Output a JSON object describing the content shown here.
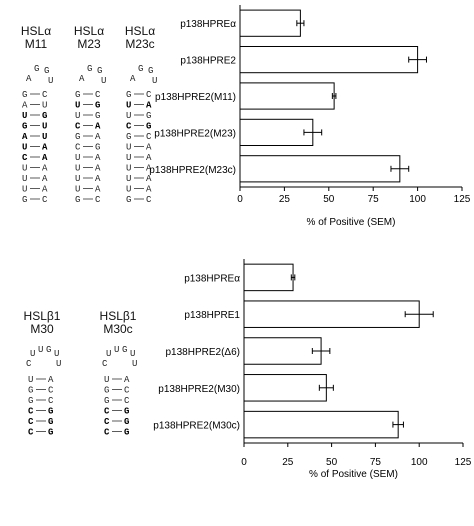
{
  "structures_top": [
    {
      "title_lines": [
        "HSLα",
        "M11"
      ],
      "loop": [
        "A",
        "G",
        "G",
        "U"
      ],
      "stem": [
        [
          "G",
          "C",
          false
        ],
        [
          "A",
          "U",
          false
        ],
        [
          "U",
          "G",
          true
        ],
        [
          "G",
          "U",
          true
        ],
        [
          "A",
          "U",
          true
        ],
        [
          "U",
          "A",
          true
        ],
        [
          "C",
          "A",
          true
        ],
        [
          "U",
          "A",
          false
        ],
        [
          "U",
          "A",
          false
        ],
        [
          "U",
          "A",
          false
        ],
        [
          "G",
          "C",
          false
        ]
      ]
    },
    {
      "title_lines": [
        "HSLα",
        "M23"
      ],
      "loop": [
        "A",
        "G",
        "G",
        "U"
      ],
      "stem": [
        [
          "G",
          "C",
          false
        ],
        [
          "U",
          "G",
          true
        ],
        [
          "U",
          "G",
          false
        ],
        [
          "C",
          "A",
          true
        ],
        [
          "G",
          "A",
          false
        ],
        [
          "C",
          "G",
          false
        ],
        [
          "U",
          "A",
          false
        ],
        [
          "U",
          "A",
          false
        ],
        [
          "U",
          "A",
          false
        ],
        [
          "U",
          "A",
          false
        ],
        [
          "G",
          "C",
          false
        ]
      ]
    },
    {
      "title_lines": [
        "HSLα",
        "M23c"
      ],
      "loop": [
        "A",
        "G",
        "G",
        "U"
      ],
      "stem": [
        [
          "G",
          "C",
          false
        ],
        [
          "U",
          "A",
          true
        ],
        [
          "U",
          "G",
          false
        ],
        [
          "C",
          "G",
          true
        ],
        [
          "G",
          "C",
          false
        ],
        [
          "U",
          "A",
          false
        ],
        [
          "U",
          "A",
          false
        ],
        [
          "U",
          "A",
          false
        ],
        [
          "U",
          "A",
          false
        ],
        [
          "U",
          "A",
          false
        ],
        [
          "G",
          "C",
          false
        ]
      ]
    }
  ],
  "structures_bottom": [
    {
      "title_lines": [
        "HSLβ1",
        "M30"
      ],
      "loop": [
        "U",
        "U",
        "G",
        "U",
        "C",
        "U"
      ],
      "stem": [
        [
          "U",
          "A",
          false
        ],
        [
          "G",
          "C",
          false
        ],
        [
          "G",
          "C",
          false
        ],
        [
          "C",
          "G",
          true
        ],
        [
          "C",
          "G",
          true
        ],
        [
          "C",
          "G",
          true
        ]
      ]
    },
    {
      "title_lines": [
        "HSLβ1",
        "M30c"
      ],
      "loop": [
        "U",
        "U",
        "G",
        "U",
        "C",
        "U"
      ],
      "stem": [
        [
          "U",
          "A",
          false
        ],
        [
          "G",
          "C",
          false
        ],
        [
          "G",
          "C",
          false
        ],
        [
          "C",
          "G",
          true
        ],
        [
          "C",
          "G",
          true
        ],
        [
          "C",
          "G",
          true
        ]
      ]
    }
  ],
  "chart_data": [
    {
      "type": "bar",
      "orientation": "horizontal",
      "categories": [
        "p138HPREα",
        "p138HPRE2",
        "p138HPRE2(M11)",
        "p138HPRE2(M23)",
        "p138HPRE2(M23c)"
      ],
      "values": [
        34,
        100,
        53,
        41,
        90
      ],
      "errors": [
        2,
        5,
        1,
        5,
        5
      ],
      "xlabel": "% of Positive (SEM)",
      "xlim": [
        0,
        125
      ],
      "xticks": [
        "0",
        "25",
        "50",
        "75",
        "100",
        "125"
      ],
      "colors": {
        "bar_fill": "#ffffff",
        "stroke": "#000000"
      }
    },
    {
      "type": "bar",
      "orientation": "horizontal",
      "categories": [
        "p138HPREα",
        "p138HPRE1",
        "p138HPRE2(Δ6)",
        "p138HPRE2(M30)",
        "p138HPRE2(M30c)"
      ],
      "values": [
        28,
        100,
        44,
        47,
        88
      ],
      "errors": [
        1,
        8,
        5,
        4,
        3
      ],
      "xlabel": "% of Positive (SEM)",
      "xlim": [
        0,
        125
      ],
      "xticks": [
        "0",
        "25",
        "50",
        "75",
        "100",
        "125"
      ],
      "colors": {
        "bar_fill": "#ffffff",
        "stroke": "#000000"
      }
    }
  ]
}
